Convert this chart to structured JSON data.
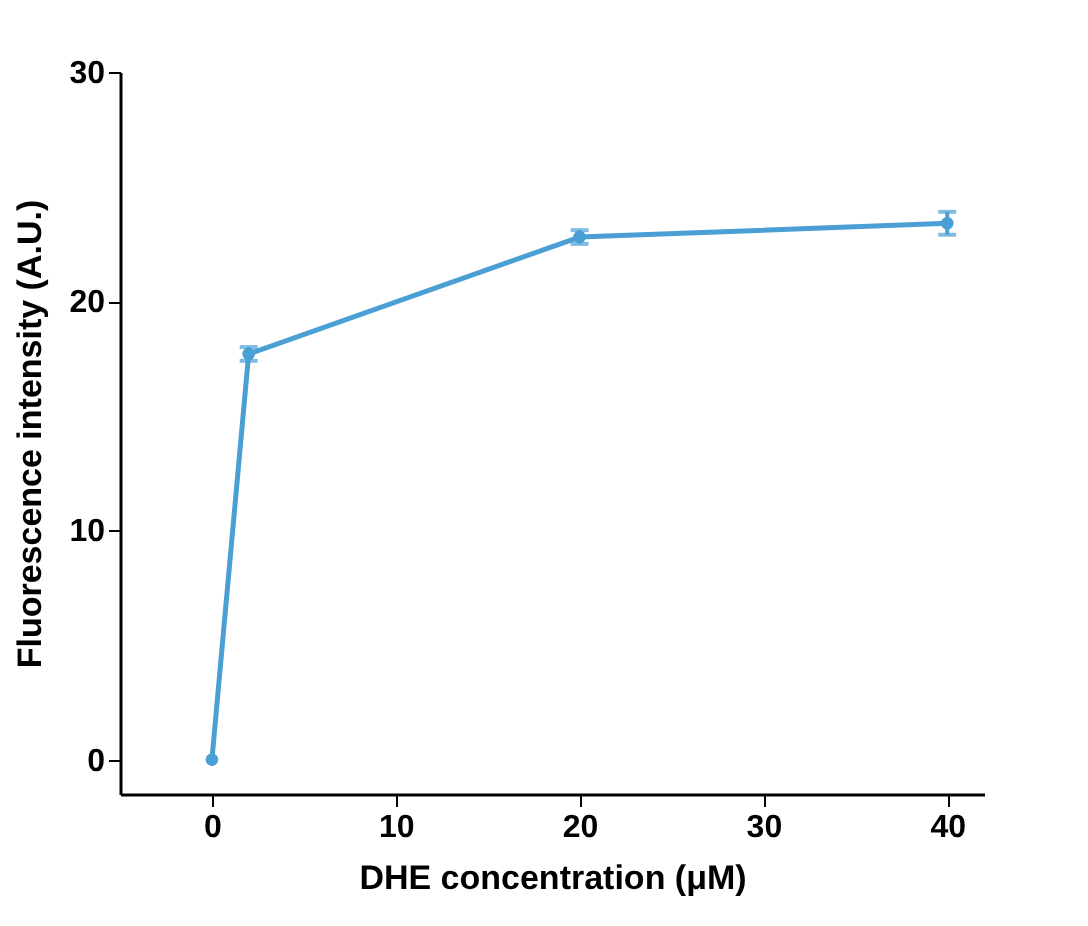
{
  "chart_data": {
    "type": "line",
    "xlabel": "DHE concentration (μM)",
    "ylabel": "Fluorescence intensity (A.U.)",
    "x": [
      0,
      2,
      20,
      40
    ],
    "series": [
      {
        "color": "#4a9fd4",
        "values": [
          0,
          17.7,
          22.8,
          23.4
        ],
        "errors": [
          null,
          0.3,
          0.3,
          0.5
        ]
      }
    ],
    "xlim": [
      -5,
      42
    ],
    "xticks": [
      0,
      10,
      20,
      30,
      40
    ],
    "ylim": [
      -1.5,
      30
    ],
    "yticks": [
      0,
      10,
      20,
      30
    ],
    "grid": false,
    "marker": "circle",
    "line_style": "solid"
  }
}
